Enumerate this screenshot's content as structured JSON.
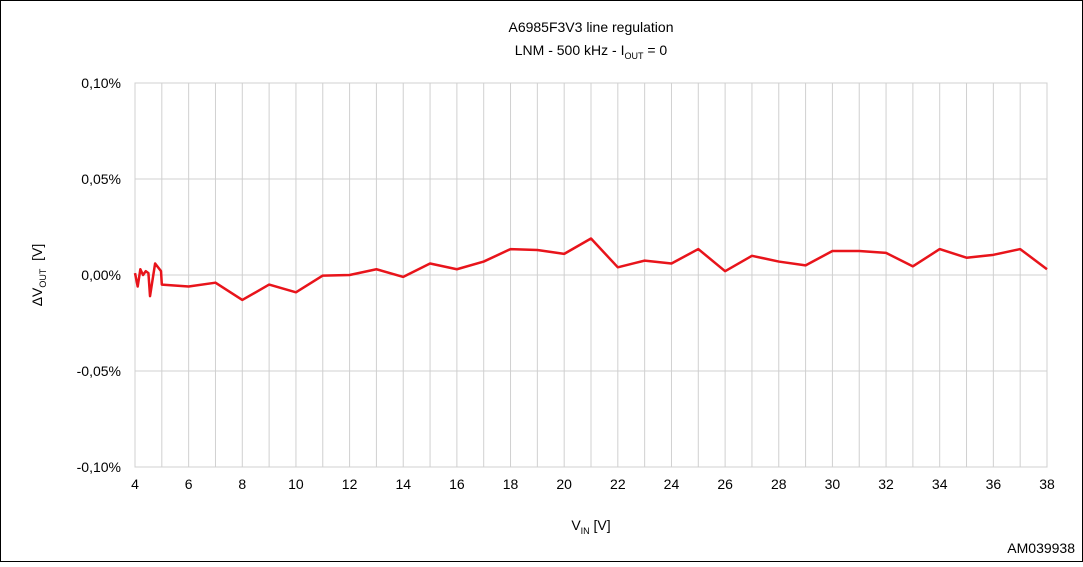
{
  "chart_data": {
    "type": "line",
    "title": "A6985F3V3 line regulation",
    "subtitle_parts": [
      "LNM - 500 kHz - I",
      "OUT",
      " = 0"
    ],
    "ylabel_parts": [
      "ΔV",
      "OUT",
      "  [V]"
    ],
    "xlabel_parts": [
      "V",
      "IN",
      " [V]"
    ],
    "annotation": "AM039938",
    "x": [
      4.0,
      4.1,
      4.2,
      4.3,
      4.4,
      4.5,
      4.56,
      4.75,
      4.97,
      5.0,
      6,
      7,
      8,
      9,
      10,
      11,
      12,
      13,
      14,
      15,
      16,
      17,
      18,
      19,
      20,
      21,
      22,
      23,
      24,
      25,
      26,
      27,
      28,
      29,
      30,
      31,
      32,
      33,
      34,
      35,
      36,
      37,
      38
    ],
    "series": [
      {
        "name": "line regulation",
        "color": "#e8141b",
        "values": [
          0.001,
          -0.006,
          0.003,
          0.0,
          0.002,
          0.001,
          -0.011,
          0.006,
          0.002,
          -0.005,
          -0.006,
          -0.004,
          -0.013,
          -0.005,
          -0.009,
          -0.0003,
          0.0,
          0.003,
          -0.001,
          0.006,
          0.003,
          0.007,
          0.0135,
          0.013,
          0.011,
          0.019,
          0.004,
          0.0075,
          0.006,
          0.0135,
          0.002,
          0.01,
          0.007,
          0.005,
          0.0125,
          0.0125,
          0.0115,
          0.0045,
          0.0135,
          0.009,
          0.0105,
          0.0135,
          0.003
        ]
      }
    ],
    "xlim": [
      4,
      38
    ],
    "xticks": [
      4,
      6,
      8,
      10,
      12,
      14,
      16,
      18,
      20,
      22,
      24,
      26,
      28,
      30,
      32,
      34,
      36,
      38
    ],
    "x_minor_grid": [
      5,
      7,
      9,
      11,
      13,
      15,
      17,
      19,
      21,
      23,
      25,
      27,
      29,
      31,
      33,
      35,
      37
    ],
    "ylim": [
      -0.1,
      0.1
    ],
    "yticks": [
      {
        "value": -0.1,
        "label": "-0,10%"
      },
      {
        "value": -0.05,
        "label": "-0,05%"
      },
      {
        "value": 0,
        "label": "0,00%"
      },
      {
        "value": 0.05,
        "label": "0,05%"
      },
      {
        "value": 0.1,
        "label": "0,10%"
      }
    ],
    "grid": true
  }
}
